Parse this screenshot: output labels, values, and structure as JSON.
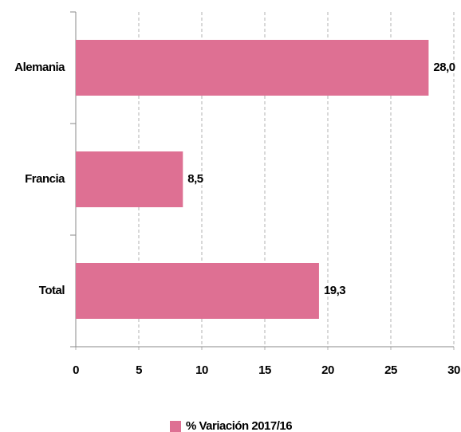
{
  "chart_data": {
    "type": "bar",
    "orientation": "horizontal",
    "categories": [
      "Alemania",
      "Francia",
      "Total"
    ],
    "series": [
      {
        "name": "% Variación 2017/16",
        "color": "#de7093",
        "values": [
          28.0,
          8.5,
          19.3
        ],
        "value_labels": [
          "28,0",
          "8,5",
          "19,3"
        ]
      }
    ],
    "xlim": [
      0,
      30
    ],
    "xticks": [
      0,
      5,
      10,
      15,
      20,
      25,
      30
    ],
    "grid": true,
    "legend": "bottom"
  }
}
